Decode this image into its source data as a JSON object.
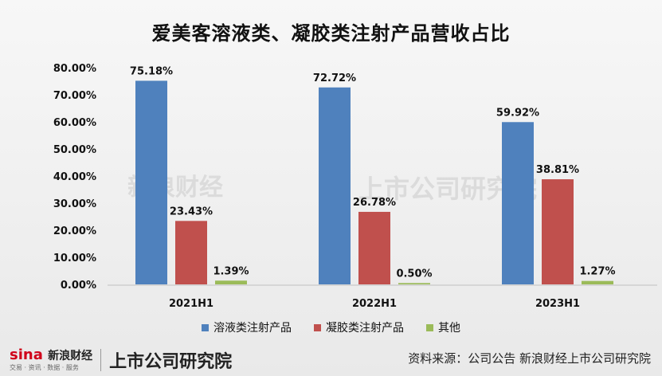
{
  "title": "爱美客溶液类、凝胶类注射产品营收占比",
  "chart_data": {
    "type": "bar",
    "categories": [
      "2021H1",
      "2022H1",
      "2023H1"
    ],
    "series": [
      {
        "name": "溶液类注射产品",
        "values": [
          75.18,
          72.72,
          59.92
        ],
        "labels": [
          "75.18%",
          "72.72%",
          "59.92%"
        ],
        "color": "#4f81bd"
      },
      {
        "name": "凝胶类注射产品",
        "values": [
          23.43,
          26.78,
          38.81
        ],
        "labels": [
          "23.43%",
          "26.78%",
          "38.81%"
        ],
        "color": "#c0504d"
      },
      {
        "name": "其他",
        "values": [
          1.39,
          0.5,
          1.27
        ],
        "labels": [
          "1.39%",
          "0.50%",
          "1.27%"
        ],
        "color": "#9bbb59"
      }
    ],
    "yticks": [
      "0.00%",
      "10.00%",
      "20.00%",
      "30.00%",
      "40.00%",
      "50.00%",
      "60.00%",
      "70.00%",
      "80.00%"
    ],
    "ylim": [
      0,
      80
    ],
    "legend": "bottom",
    "grid": false
  },
  "watermark": {
    "left": "新浪财经",
    "right": "上市公司研究院"
  },
  "footer": {
    "sina_logo": "sina",
    "sina_name": "新浪财经",
    "sina_sub": "交易 · 资讯 · 数据 · 服务",
    "research_logo": "上市公司研究院",
    "source": "资料来源：公司公告 新浪财经上市公司研究院"
  }
}
